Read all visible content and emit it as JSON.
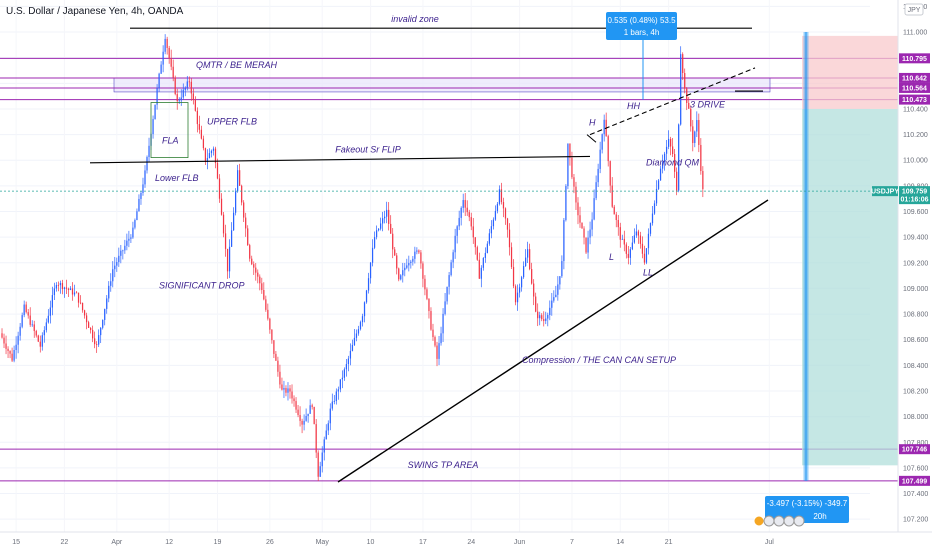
{
  "chart_title": "U.S. Dollar / Japanese Yen, 4h, OANDA",
  "currency_badge": "JPY",
  "colors": {
    "up": "#2962ff",
    "down": "#f23645",
    "zone_line": "#9c27b0",
    "target_fill": "#b2dfdb",
    "stop_fill": "#f8c9cc",
    "measure": "#2196f3",
    "annotation": "#3a1f8c",
    "trend": "#000000"
  },
  "chart_data": {
    "type": "candlestick",
    "symbol": "USDJPY",
    "timeframe": "4h",
    "ylim": [
      107.1,
      111.25
    ],
    "y_ticks": [
      107.2,
      107.4,
      107.6,
      107.8,
      108.0,
      108.2,
      108.4,
      108.6,
      108.8,
      109.0,
      109.2,
      109.4,
      109.6,
      109.8,
      110.0,
      110.2,
      110.4,
      110.6,
      110.8,
      111.0,
      111.2
    ],
    "x_ticks": [
      "15",
      "22",
      "Apr",
      "12",
      "19",
      "26",
      "May",
      "10",
      "17",
      "24",
      "Jun",
      "7",
      "14",
      "21",
      "Jul"
    ],
    "price_path": [
      {
        "t": 0,
        "p": 108.65
      },
      {
        "t": 3,
        "p": 108.45
      },
      {
        "t": 6,
        "p": 108.85
      },
      {
        "t": 10,
        "p": 108.55
      },
      {
        "t": 14,
        "p": 109.05
      },
      {
        "t": 19,
        "p": 108.95
      },
      {
        "t": 24,
        "p": 108.55
      },
      {
        "t": 28,
        "p": 109.15
      },
      {
        "t": 33,
        "p": 109.45
      },
      {
        "t": 36,
        "p": 109.9
      },
      {
        "t": 39,
        "p": 110.55
      },
      {
        "t": 41,
        "p": 110.97
      },
      {
        "t": 44,
        "p": 110.45
      },
      {
        "t": 47,
        "p": 110.62
      },
      {
        "t": 49,
        "p": 110.3
      },
      {
        "t": 51,
        "p": 110.0
      },
      {
        "t": 53,
        "p": 110.1
      },
      {
        "t": 55,
        "p": 109.6
      },
      {
        "t": 56.5,
        "p": 109.15
      },
      {
        "t": 59,
        "p": 109.9
      },
      {
        "t": 62,
        "p": 109.25
      },
      {
        "t": 65,
        "p": 109.0
      },
      {
        "t": 68,
        "p": 108.5
      },
      {
        "t": 70,
        "p": 108.2
      },
      {
        "t": 72,
        "p": 108.2
      },
      {
        "t": 75,
        "p": 107.95
      },
      {
        "t": 77.5,
        "p": 108.1
      },
      {
        "t": 79,
        "p": 107.55
      },
      {
        "t": 82,
        "p": 108.05
      },
      {
        "t": 86,
        "p": 108.4
      },
      {
        "t": 90,
        "p": 108.8
      },
      {
        "t": 93,
        "p": 109.4
      },
      {
        "t": 96,
        "p": 109.6
      },
      {
        "t": 99,
        "p": 109.05
      },
      {
        "t": 101,
        "p": 109.2
      },
      {
        "t": 104,
        "p": 109.3
      },
      {
        "t": 107,
        "p": 108.7
      },
      {
        "t": 108.5,
        "p": 108.45
      },
      {
        "t": 111,
        "p": 109.0
      },
      {
        "t": 113,
        "p": 109.4
      },
      {
        "t": 115,
        "p": 109.7
      },
      {
        "t": 117,
        "p": 109.5
      },
      {
        "t": 119,
        "p": 109.1
      },
      {
        "t": 121,
        "p": 109.35
      },
      {
        "t": 124,
        "p": 109.75
      },
      {
        "t": 126,
        "p": 109.45
      },
      {
        "t": 128,
        "p": 108.9
      },
      {
        "t": 131,
        "p": 109.3
      },
      {
        "t": 133,
        "p": 108.8
      },
      {
        "t": 135,
        "p": 108.75
      },
      {
        "t": 138,
        "p": 108.95
      },
      {
        "t": 139.5,
        "p": 109.2
      },
      {
        "t": 141,
        "p": 110.13
      },
      {
        "t": 143,
        "p": 109.65
      },
      {
        "t": 144.5,
        "p": 109.45
      },
      {
        "t": 145.5,
        "p": 109.3
      },
      {
        "t": 147,
        "p": 109.55
      },
      {
        "t": 148.5,
        "p": 109.95
      },
      {
        "t": 150,
        "p": 110.34
      },
      {
        "t": 152,
        "p": 109.65
      },
      {
        "t": 154,
        "p": 109.4
      },
      {
        "t": 156,
        "p": 109.25
      },
      {
        "t": 158,
        "p": 109.45
      },
      {
        "t": 160,
        "p": 109.22
      },
      {
        "t": 162,
        "p": 109.6
      },
      {
        "t": 164,
        "p": 109.95
      },
      {
        "t": 166,
        "p": 110.15
      },
      {
        "t": 167,
        "p": 110.05
      },
      {
        "t": 168,
        "p": 109.75
      },
      {
        "t": 169,
        "p": 110.85
      },
      {
        "t": 170,
        "p": 110.55
      },
      {
        "t": 171,
        "p": 110.38
      },
      {
        "t": 172,
        "p": 110.15
      },
      {
        "t": 173,
        "p": 110.3
      },
      {
        "t": 174.5,
        "p": 109.76
      }
    ],
    "annotations": [
      {
        "text": "invalid zone"
      },
      {
        "text": "QMTR / BE MERAH"
      },
      {
        "text": "UPPER FLB"
      },
      {
        "text": "FLA"
      },
      {
        "text": "Fakeout Sr FLIP"
      },
      {
        "text": "Lower FLB"
      },
      {
        "text": "SIGNIFICANT DROP"
      },
      {
        "text": "SWING TP AREA"
      },
      {
        "text": "Compression / THE CAN CAN SETUP"
      },
      {
        "text": "Diamond QM"
      },
      {
        "text": "3 DRIVE"
      },
      {
        "text": "H"
      },
      {
        "text": "HH"
      },
      {
        "text": "L"
      },
      {
        "text": "LL"
      }
    ],
    "horizontal_levels": [
      110.795,
      110.642,
      110.564,
      110.473,
      107.746,
      107.499
    ],
    "level_labels": [
      "110.795",
      "110.642",
      "110.564",
      "110.473",
      "107.746",
      "107.499"
    ],
    "current_price": {
      "symbol": "USDJPY",
      "price": "109.759",
      "countdown": "01:16:06",
      "value": 109.759
    },
    "position": {
      "entry": 110.4,
      "stop": 110.97,
      "target": 107.62
    },
    "measure_top": {
      "line1": "0.535 (0.48%) 53.5",
      "line2": "1 bars, 4h",
      "from": 110.473,
      "to": 111.0
    },
    "measure_bottom": {
      "line1": "-3.497 (-3.15%) -349.7",
      "line2": "20h"
    }
  }
}
